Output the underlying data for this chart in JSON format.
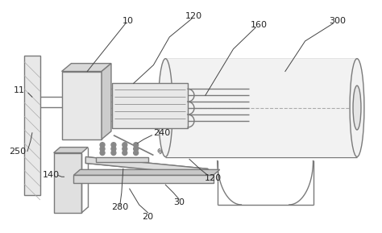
{
  "bg_color": "#ffffff",
  "line_color": "#7a7a7a",
  "line_width": 1.0,
  "dpi": 100,
  "figsize": [
    4.74,
    2.89
  ]
}
